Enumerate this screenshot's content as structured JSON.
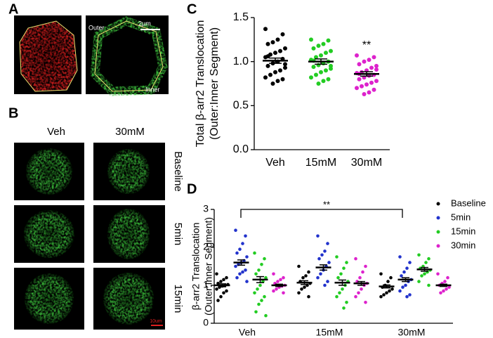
{
  "panels": {
    "A": {
      "label": "A",
      "annotations": [
        "Outer",
        "2μm",
        "Inner"
      ]
    },
    "B": {
      "label": "B",
      "columns": [
        "Veh",
        "30mM"
      ],
      "rows": [
        "Baseline",
        "5min",
        "15min"
      ],
      "scale_bar": "10um"
    }
  },
  "chart_data": [
    {
      "type": "dot",
      "panel": "C",
      "ylabel": [
        "Total β-arr2 Translocation",
        "(Outer:Inner Segment)"
      ],
      "categories": [
        "Veh",
        "15mM",
        "30mM"
      ],
      "colors": [
        "#000000",
        "#22cc22",
        "#dd22cc"
      ],
      "points": [
        [
          1.37,
          1.31,
          1.25,
          1.22,
          1.2,
          1.15,
          1.12,
          1.1,
          1.08,
          1.05,
          1.03,
          1.0,
          0.98,
          0.95,
          0.93,
          0.9,
          0.88,
          0.85,
          0.82,
          0.8,
          0.78,
          0.75,
          1.06,
          0.97
        ],
        [
          1.25,
          1.24,
          1.2,
          1.18,
          1.15,
          1.12,
          1.1,
          1.07,
          1.05,
          1.02,
          1.0,
          0.98,
          0.96,
          0.94,
          0.92,
          0.9,
          0.88,
          0.85,
          0.82,
          0.8,
          0.78,
          0.75,
          1.01,
          0.95
        ],
        [
          1.07,
          1.05,
          1.02,
          1.0,
          0.97,
          0.95,
          0.93,
          0.9,
          0.88,
          0.87,
          0.85,
          0.84,
          0.82,
          0.8,
          0.78,
          0.76,
          0.74,
          0.72,
          0.7,
          0.68,
          0.65,
          0.63,
          0.86,
          0.91
        ]
      ],
      "means": [
        1.01,
        1.0,
        0.86
      ],
      "sem": [
        0.03,
        0.03,
        0.025
      ],
      "annotation": "**",
      "ylim": [
        0,
        1.5
      ],
      "yticks": [
        {
          "value": 0,
          "label": "0.0"
        },
        0.5,
        {
          "value": 1,
          "label": "1.0"
        },
        1.5
      ]
    },
    {
      "type": "dot",
      "panel": "D",
      "ylabel": [
        "β-arr2 Translocation",
        "(Outer:Inner Segment)"
      ],
      "categories": [
        "Veh",
        "15mM",
        "30mM"
      ],
      "annotation": "**",
      "series": [
        {
          "name": "Baseline",
          "color": "#000000",
          "points": [
            [
              1.3,
              1.2,
              1.15,
              1.1,
              1.05,
              1.02,
              1.0,
              0.98,
              0.95,
              0.9,
              0.85,
              0.8,
              0.7,
              0.6
            ],
            [
              1.5,
              1.35,
              1.25,
              1.2,
              1.1,
              1.05,
              1.0,
              0.95,
              0.9,
              0.8,
              0.7
            ],
            [
              1.3,
              1.2,
              1.1,
              1.0,
              0.95,
              0.9,
              0.85,
              0.8,
              0.75,
              0.7
            ]
          ],
          "means": [
            1.0,
            1.07,
            0.97
          ],
          "sem": [
            0.04,
            0.05,
            0.04
          ]
        },
        {
          "name": "5min",
          "color": "#2233cc",
          "points": [
            [
              2.45,
              2.3,
              2.1,
              1.95,
              1.85,
              1.75,
              1.65,
              1.6,
              1.55,
              1.5,
              1.4,
              1.35,
              1.3,
              1.2,
              1.1
            ],
            [
              2.3,
              2.1,
              1.9,
              1.8,
              1.7,
              1.6,
              1.5,
              1.4,
              1.3,
              1.2,
              1.1,
              1.0
            ],
            [
              1.75,
              1.6,
              1.45,
              1.35,
              1.25,
              1.15,
              1.1,
              1.0,
              0.95,
              0.85,
              0.75,
              0.7
            ]
          ],
          "means": [
            1.6,
            1.47,
            1.15
          ],
          "sem": [
            0.07,
            0.07,
            0.05
          ]
        },
        {
          "name": "15min",
          "color": "#22cc22",
          "points": [
            [
              1.85,
              1.7,
              1.55,
              1.4,
              1.3,
              1.2,
              1.1,
              1.0,
              0.9,
              0.8,
              0.7,
              0.6,
              0.5,
              0.3,
              0.2
            ],
            [
              1.75,
              1.6,
              1.45,
              1.3,
              1.2,
              1.1,
              1.0,
              0.9,
              0.8,
              0.7,
              0.55,
              0.4
            ],
            [
              1.8,
              1.7,
              1.6,
              1.5,
              1.45,
              1.4,
              1.35,
              1.3,
              1.25,
              1.1,
              1.0
            ]
          ],
          "means": [
            1.15,
            1.07,
            1.42
          ],
          "sem": [
            0.08,
            0.07,
            0.05
          ]
        },
        {
          "name": "30min",
          "color": "#dd22cc",
          "points": [
            [
              1.3,
              1.2,
              1.15,
              1.1,
              1.05,
              1.0,
              0.98,
              0.95,
              0.9,
              0.85,
              0.8
            ],
            [
              1.7,
              1.5,
              1.35,
              1.2,
              1.1,
              1.05,
              1.0,
              0.9,
              0.8,
              0.7,
              0.55
            ],
            [
              1.3,
              1.2,
              1.1,
              1.05,
              1.0,
              0.95,
              0.9,
              0.85,
              0.8
            ]
          ],
          "means": [
            1.0,
            1.05,
            1.0
          ],
          "sem": [
            0.03,
            0.05,
            0.03
          ]
        }
      ],
      "ylim": [
        0,
        3
      ],
      "yticks": [
        0,
        1,
        2,
        3
      ],
      "legend": "right"
    }
  ]
}
